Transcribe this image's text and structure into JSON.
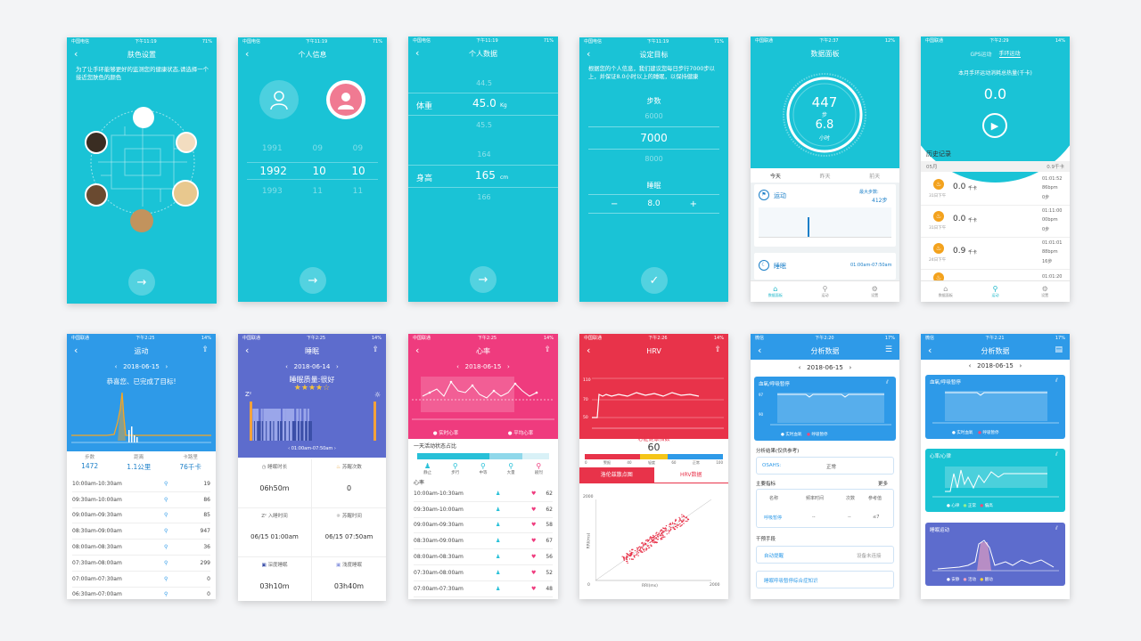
{
  "colors": {
    "teal": "#1ac3d6",
    "blue": "#2e9ae8",
    "indigo": "#5d6ccd",
    "pink": "#ef3b7e",
    "red": "#e8334a"
  },
  "p1": {
    "carrier": "中国电信",
    "time": "下午11:19",
    "battery": "71%",
    "title": "肤色设置",
    "desc": "为了让手环能够更好的监测您的健康状态,请选择一个接近您肤色的颜色",
    "next_icon": "arrow-right"
  },
  "p2": {
    "carrier": "中国电信",
    "time": "下午11:19",
    "battery": "71%",
    "title": "个人信息",
    "years": [
      "1991",
      "1992",
      "1993"
    ],
    "months": [
      "09",
      "10",
      "11"
    ],
    "days": [
      "09",
      "10",
      "11"
    ]
  },
  "p3": {
    "carrier": "中国电信",
    "time": "下午11:19",
    "battery": "71%",
    "title": "个人数据",
    "weight_label": "体重",
    "weight_opts": [
      "44.5",
      "45.0",
      "45.5"
    ],
    "weight_unit": "Kg",
    "height_label": "身高",
    "height_opts": [
      "164",
      "165",
      "166"
    ],
    "height_unit": "cm"
  },
  "p4": {
    "carrier": "中国电信",
    "time": "下午11:19",
    "battery": "71%",
    "title": "设定目标",
    "desc": "根据您的个人信息，我们建议您每日步行7000步以上，并保证8.0小时以上的睡眠，以保持健康",
    "steps_label": "步数",
    "steps_opts": [
      "6000",
      "7000",
      "8000"
    ],
    "sleep_label": "睡眠",
    "sleep_value": "8.0",
    "minus": "−",
    "plus": "+"
  },
  "p5": {
    "carrier": "中国联通",
    "time": "下午2:37",
    "battery": "12%",
    "title": "数据面板",
    "steps": "447",
    "steps_unit": "步",
    "hours": "6.8",
    "hours_unit": "小时",
    "days": [
      "今天",
      "昨天",
      "前天"
    ],
    "sport_label": "运动",
    "max_label": "最大步数:",
    "max_value": "412步",
    "sleep_label": "睡眠",
    "sleep_range": "01:00am-07:50am",
    "tabs": [
      "数据面板",
      "运动",
      "设置"
    ]
  },
  "p6": {
    "carrier": "中国联通",
    "time": "下午2:29",
    "battery": "14%",
    "tab_gps": "GPS运动",
    "tab_band": "手环运动",
    "subtitle": "本月手环运动消耗总热量(千卡)",
    "total": "0.0",
    "history_label": "历史记录",
    "month": "05月",
    "month_total": "0.9千卡",
    "records": [
      {
        "value": "0.0",
        "unit": "千卡",
        "date": "31日下午",
        "time": "01:01:52",
        "bpm": "86bpm",
        "steps": "0步"
      },
      {
        "value": "0.0",
        "unit": "千卡",
        "date": "31日下午",
        "time": "01:11:00",
        "bpm": "00bpm",
        "steps": "0步"
      },
      {
        "value": "0.9",
        "unit": "千卡",
        "date": "24日下午",
        "time": "01:01:01",
        "bpm": "88bpm",
        "steps": "16步"
      },
      {
        "value": "0.0",
        "unit": "千卡",
        "date": "",
        "time": "01:01:20",
        "bpm": "",
        "steps": ""
      }
    ],
    "tabs": [
      "数据面板",
      "运动",
      "设置"
    ]
  },
  "p7": {
    "carrier": "中国联通",
    "time": "下午2:25",
    "battery": "14%",
    "title": "运动",
    "date": "2018-06-15",
    "congrats": "恭喜您、已完成了目标!",
    "stats": [
      {
        "label": "步数",
        "value": "1472"
      },
      {
        "label": "距离",
        "value": "1.1公里"
      },
      {
        "label": "卡路里",
        "value": "76千卡"
      }
    ],
    "rows": [
      {
        "time": "10:00am-10:30am",
        "v": "19"
      },
      {
        "time": "09:30am-10:00am",
        "v": "86"
      },
      {
        "time": "09:00am-09:30am",
        "v": "85"
      },
      {
        "time": "08:30am-09:00am",
        "v": "947"
      },
      {
        "time": "08:00am-08:30am",
        "v": "36"
      },
      {
        "time": "07:30am-08:00am",
        "v": "299"
      },
      {
        "time": "07:00am-07:30am",
        "v": "0"
      },
      {
        "time": "06:30am-07:00am",
        "v": "0"
      }
    ]
  },
  "p8": {
    "carrier": "中国联通",
    "time": "下午2:25",
    "battery": "14%",
    "title": "睡眠",
    "date": "2018-06-14",
    "quality": "睡眠质量:很好",
    "stars": 4,
    "stars_max": 5,
    "range": "01:00am-07:50am",
    "items": [
      {
        "label": "睡眠时长",
        "value": "06h50m"
      },
      {
        "label": "苏醒次数",
        "value": "0"
      },
      {
        "label": "入睡时间",
        "value": "06/15 01:00am"
      },
      {
        "label": "苏醒时间",
        "value": "06/15 07:50am"
      },
      {
        "label": "深度睡眠",
        "value": "03h10m"
      },
      {
        "label": "浅度睡眠",
        "value": "03h40m"
      }
    ]
  },
  "p9": {
    "carrier": "中国联通",
    "time": "下午2:25",
    "battery": "14%",
    "title": "心率",
    "date": "2018-06-15",
    "legend_rt": "实时心率",
    "legend_avg": "平均心率",
    "activity_title": "一天活动状态占比",
    "acts": [
      "静止",
      "步行",
      "中等",
      "大量",
      "剧烈"
    ],
    "hr_label": "心率",
    "rows": [
      {
        "time": "10:00am-10:30am",
        "v": "62"
      },
      {
        "time": "09:30am-10:00am",
        "v": "62"
      },
      {
        "time": "09:00am-09:30am",
        "v": "58"
      },
      {
        "time": "08:30am-09:00am",
        "v": "67"
      },
      {
        "time": "08:00am-08:30am",
        "v": "56"
      },
      {
        "time": "07:30am-08:00am",
        "v": "52"
      },
      {
        "time": "07:00am-07:30am",
        "v": "48"
      }
    ]
  },
  "p10": {
    "carrier": "中国联通",
    "time": "下午2:26",
    "battery": "14%",
    "title": "HRV",
    "y_top": "110",
    "y_mid": "70",
    "y_low": "50",
    "index_label": "心脏健康指数",
    "index_value": "60",
    "scale_labels": [
      "0",
      "警报",
      "40",
      "轻度",
      "60",
      "正常",
      "100"
    ],
    "tab_scatter": "洛伦兹散点图",
    "tab_hrv": "HRV数据",
    "axis_max": "2000",
    "axis_zero": "0",
    "x_label": "RRI(ms)",
    "y_label": "RRI(ms)"
  },
  "p11": {
    "carrier": "微信",
    "time": "下午2:20",
    "battery": "17%",
    "title": "分析数据",
    "date": "2018-06-15",
    "card_title": "血氧/呼吸暂停",
    "card_y": [
      "97",
      "90"
    ],
    "legend": [
      "实时血氧",
      "呼吸暂停"
    ],
    "result_label": "分析结果(仅供参考)",
    "osahs_label": "OSAHS:",
    "osahs_value": "正常",
    "main_label": "主要指标",
    "more": "更多",
    "cols": [
      "名称",
      "频率时间",
      "次数",
      "参考值"
    ],
    "apnea_label": "呼吸暂停",
    "dash1": "--",
    "dash2": "--",
    "ref": "≤7",
    "intervene_label": "干预手段",
    "device_label": "自动提醒",
    "device_value": "设备未连接",
    "link_label": "睡眠呼吸暂停综合症知识"
  },
  "p12": {
    "carrier": "微信",
    "time": "下午2:21",
    "battery": "17%",
    "title": "分析数据",
    "date": "2018-06-15",
    "cards": [
      {
        "title": "血氧/呼吸暂停",
        "legend": [
          "实时血氧",
          "呼吸暂停"
        ]
      },
      {
        "title": "心率/心律",
        "legend": [
          "心律",
          "正常",
          "偏高"
        ]
      },
      {
        "title": "睡眠运动",
        "legend": [
          "安静",
          "活动",
          "翻动"
        ]
      }
    ]
  }
}
